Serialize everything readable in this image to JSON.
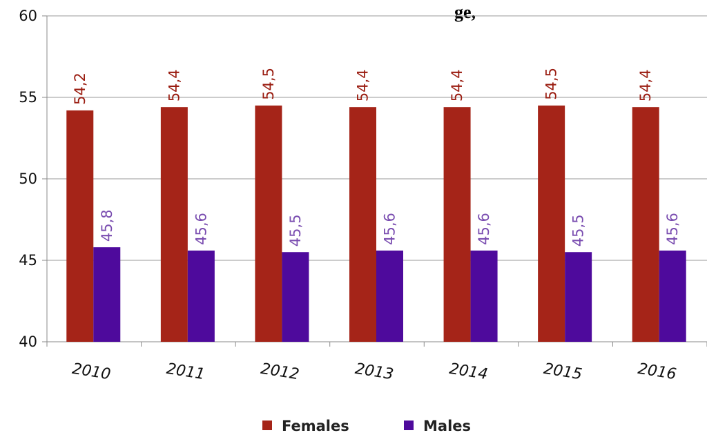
{
  "chart_data": {
    "type": "bar",
    "title_fragment": "ge, ",
    "categories": [
      "2010",
      "2011",
      "2012",
      "2013",
      "2014",
      "2015",
      "2016"
    ],
    "series": [
      {
        "name": "Females",
        "color": "#a52418",
        "label_color": "#9a1c10",
        "values": [
          54.2,
          54.4,
          54.5,
          54.4,
          54.4,
          54.5,
          54.4
        ],
        "value_labels": [
          "54,2",
          "54,4",
          "54,5",
          "54,4",
          "54,4",
          "54,5",
          "54,4"
        ]
      },
      {
        "name": "Males",
        "color": "#4e0a9c",
        "label_color": "#7a4db0",
        "values": [
          45.8,
          45.6,
          45.5,
          45.6,
          45.6,
          45.5,
          45.6
        ],
        "value_labels": [
          "45,8",
          "45,6",
          "45,5",
          "45,6",
          "45,6",
          "45,5",
          "45,6"
        ]
      }
    ],
    "ylim": [
      40,
      60
    ],
    "yticks": [
      "40",
      "45",
      "50",
      "55",
      "60"
    ],
    "grid": true,
    "legend_position": "bottom-center"
  }
}
